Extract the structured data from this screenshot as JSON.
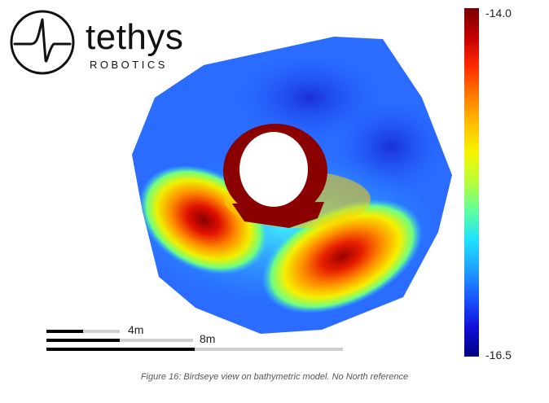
{
  "logo": {
    "name": "tethys",
    "subtitle": "ROBOTICS"
  },
  "colorbar": {
    "max_label": "-14.0",
    "min_label": "-16.5",
    "colormap": "jet"
  },
  "scale_bars": [
    {
      "label": "4m"
    },
    {
      "label": "8m"
    }
  ],
  "caption": "Figure 16: Birdseye view on bathymetric model. No North reference"
}
